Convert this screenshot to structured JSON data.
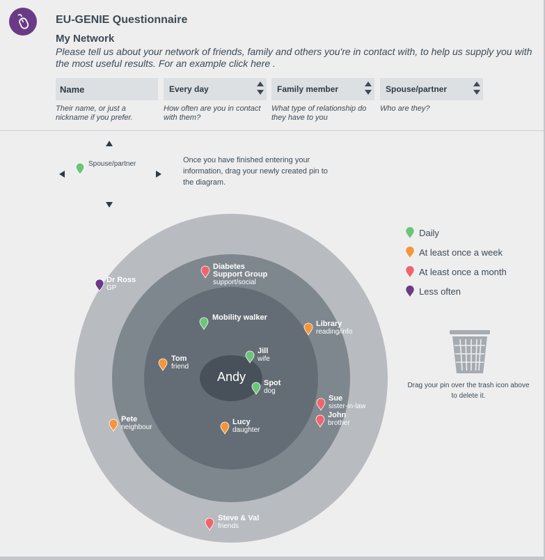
{
  "app": {
    "title": "EU-GENIE Questionnaire",
    "logo_icon": "mouse-icon"
  },
  "section": {
    "title": "My Network",
    "intro": "Please tell us about your network of friends, family and others you're in contact with, to help us supply you with the most useful results. For an example ",
    "intro_link": "click here",
    "intro_end": " ."
  },
  "form": {
    "name_placeholder": "Name",
    "frequency_value": "Every day",
    "relationship_value": "Family member",
    "role_value": "Spouse/partner",
    "name_hint": "Their name, or just a nickname if you prefer.",
    "frequency_hint": "How often are you in contact with them?",
    "relationship_hint": "What type of relationship do they have to you",
    "role_hint": "Who are they?"
  },
  "new_pin": {
    "label": "Spouse/partner",
    "color": "#6cc47a"
  },
  "instructions": "Once you have finished entering your information, drag your newly created pin to the diagram.",
  "center_label": "Andy",
  "legend": [
    {
      "label": "Daily",
      "color": "#6cc47a"
    },
    {
      "label": "At least once a week",
      "color": "#f5953a"
    },
    {
      "label": "At least once a month",
      "color": "#f0646e"
    },
    {
      "label": "Less often",
      "color": "#6b3a86"
    }
  ],
  "pins": [
    {
      "name": "Dr Ross",
      "role": "GP",
      "color": "#6b3a86"
    },
    {
      "name": "Diabetes Support Group",
      "role": "support/social",
      "color": "#f0646e"
    },
    {
      "name": "Mobility walker",
      "role": "",
      "color": "#6cc47a"
    },
    {
      "name": "Library",
      "role": "reading/info",
      "color": "#f5953a"
    },
    {
      "name": "Jill",
      "role": "wife",
      "color": "#6cc47a"
    },
    {
      "name": "Tom",
      "role": "friend",
      "color": "#f5953a"
    },
    {
      "name": "Spot",
      "role": "dog",
      "color": "#6cc47a"
    },
    {
      "name": "Sue",
      "role": "sister-in-law",
      "color": "#f0646e"
    },
    {
      "name": "John",
      "role": "brother",
      "color": "#f0646e"
    },
    {
      "name": "Pete",
      "role": "neighbour",
      "color": "#f5953a"
    },
    {
      "name": "Lucy",
      "role": "daughter",
      "color": "#f5953a"
    },
    {
      "name": "Steve & Val",
      "role": "friends",
      "color": "#f0646e"
    }
  ],
  "trash": {
    "icon": "trash-icon",
    "help": "Drag your pin over the trash icon above to delete it."
  }
}
